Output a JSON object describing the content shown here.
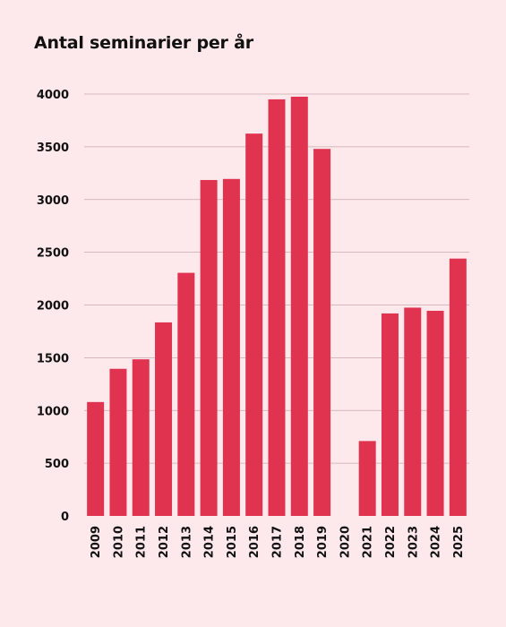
{
  "chart_data": {
    "type": "bar",
    "title": "Antal seminarier per år",
    "xlabel": "",
    "ylabel": "",
    "categories": [
      "2009",
      "2010",
      "2011",
      "2012",
      "2013",
      "2014",
      "2015",
      "2016",
      "2017",
      "2018",
      "2019",
      "2020",
      "2021",
      "2022",
      "2023",
      "2024",
      "2025"
    ],
    "values": [
      1080,
      1395,
      1485,
      1835,
      2305,
      3185,
      3195,
      3625,
      3950,
      3975,
      3480,
      0,
      710,
      1920,
      1975,
      1945,
      2440
    ],
    "ylim": [
      0,
      4000
    ],
    "yticks": [
      0,
      500,
      1000,
      1500,
      2000,
      2500,
      3000,
      3500,
      4000
    ],
    "grid": true,
    "bar_color": "#e0334f",
    "grid_color": "#c9a9ae",
    "background": "#fde9ec"
  }
}
